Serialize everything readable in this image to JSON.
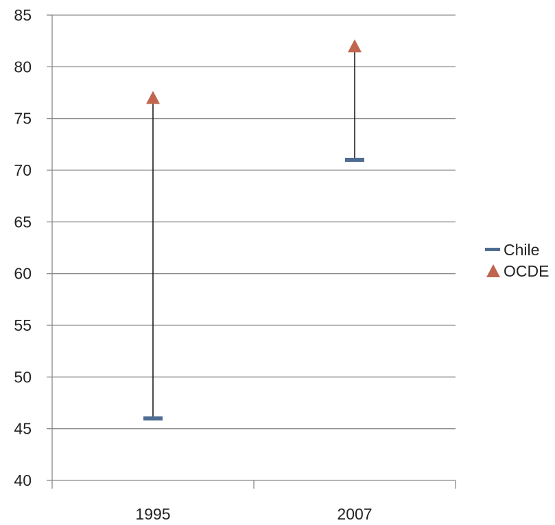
{
  "chart_data": {
    "type": "scatter",
    "categories": [
      "1995",
      "2007"
    ],
    "series": [
      {
        "name": "Chile",
        "marker": "dash",
        "color": "#4F6D93",
        "values": [
          46,
          71
        ]
      },
      {
        "name": "OCDE",
        "marker": "triangle",
        "color": "#C0654E",
        "values": [
          77,
          82
        ]
      }
    ],
    "connectors": "high-low lines between series per category",
    "ylim": [
      40,
      85
    ],
    "yticks": [
      "40",
      "45",
      "50",
      "55",
      "60",
      "65",
      "70",
      "75",
      "80",
      "85"
    ],
    "grid": true,
    "legend_position": "right",
    "title": "",
    "xlabel": "",
    "ylabel": ""
  }
}
